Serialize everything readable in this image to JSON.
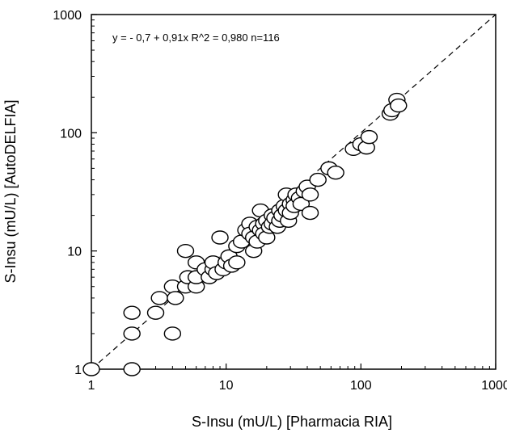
{
  "chart_data": {
    "type": "scatter",
    "annotation": "y =  - 0,7 + 0,91x   R^2 = 0,980   n=116",
    "xlabel": "S-Insu (mU/L)   [Pharmacia RIA]",
    "ylabel": "S-Insu (mU/L)   [AutoDELFIA]",
    "xscale": "log",
    "yscale": "log",
    "xlim": [
      1,
      1000
    ],
    "ylim": [
      1,
      1000
    ],
    "xticks": [
      "1",
      "10",
      "100",
      "1000"
    ],
    "yticks": [
      "1",
      "10",
      "100",
      "1000"
    ],
    "grid": false,
    "reference_line": {
      "style": "dashed",
      "from": [
        1,
        1
      ],
      "to": [
        1000,
        1000
      ]
    },
    "marker": {
      "shape": "open-ellipse",
      "stroke": "#000000",
      "fill": "#ffffff"
    },
    "series": [
      {
        "points": [
          [
            1,
            1
          ],
          [
            2,
            1
          ],
          [
            2,
            2
          ],
          [
            2,
            3
          ],
          [
            3,
            3
          ],
          [
            3.2,
            4
          ],
          [
            4,
            2
          ],
          [
            4,
            5
          ],
          [
            4.2,
            4
          ],
          [
            5,
            5
          ],
          [
            5,
            10
          ],
          [
            5.2,
            6
          ],
          [
            6,
            5
          ],
          [
            6,
            6
          ],
          [
            6,
            8
          ],
          [
            7,
            7
          ],
          [
            7.5,
            6
          ],
          [
            8,
            7
          ],
          [
            8,
            8
          ],
          [
            8.5,
            6.5
          ],
          [
            9,
            13
          ],
          [
            9.5,
            7
          ],
          [
            10,
            8
          ],
          [
            10.5,
            9
          ],
          [
            11,
            7.5
          ],
          [
            12,
            8
          ],
          [
            12,
            11
          ],
          [
            13,
            12
          ],
          [
            14,
            15
          ],
          [
            15,
            17
          ],
          [
            15,
            14
          ],
          [
            16,
            13
          ],
          [
            16,
            10
          ],
          [
            17,
            12
          ],
          [
            17,
            16
          ],
          [
            18,
            22
          ],
          [
            18,
            15
          ],
          [
            19,
            17
          ],
          [
            19,
            14
          ],
          [
            20,
            18
          ],
          [
            20,
            13
          ],
          [
            21,
            16
          ],
          [
            22,
            20
          ],
          [
            22,
            17
          ],
          [
            23,
            19
          ],
          [
            24,
            16
          ],
          [
            25,
            18
          ],
          [
            25,
            22
          ],
          [
            26,
            20
          ],
          [
            27,
            24
          ],
          [
            28,
            22
          ],
          [
            28,
            30
          ],
          [
            29,
            18
          ],
          [
            30,
            25
          ],
          [
            30,
            21
          ],
          [
            32,
            27
          ],
          [
            32,
            24
          ],
          [
            33,
            30
          ],
          [
            35,
            28
          ],
          [
            36,
            25
          ],
          [
            38,
            32
          ],
          [
            40,
            35
          ],
          [
            42,
            30
          ],
          [
            42,
            21
          ],
          [
            48,
            40
          ],
          [
            58,
            50
          ],
          [
            65,
            46
          ],
          [
            88,
            73
          ],
          [
            100,
            80
          ],
          [
            110,
            75
          ],
          [
            115,
            92
          ],
          [
            165,
            145
          ],
          [
            170,
            155
          ],
          [
            185,
            190
          ],
          [
            190,
            170
          ]
        ]
      }
    ]
  }
}
